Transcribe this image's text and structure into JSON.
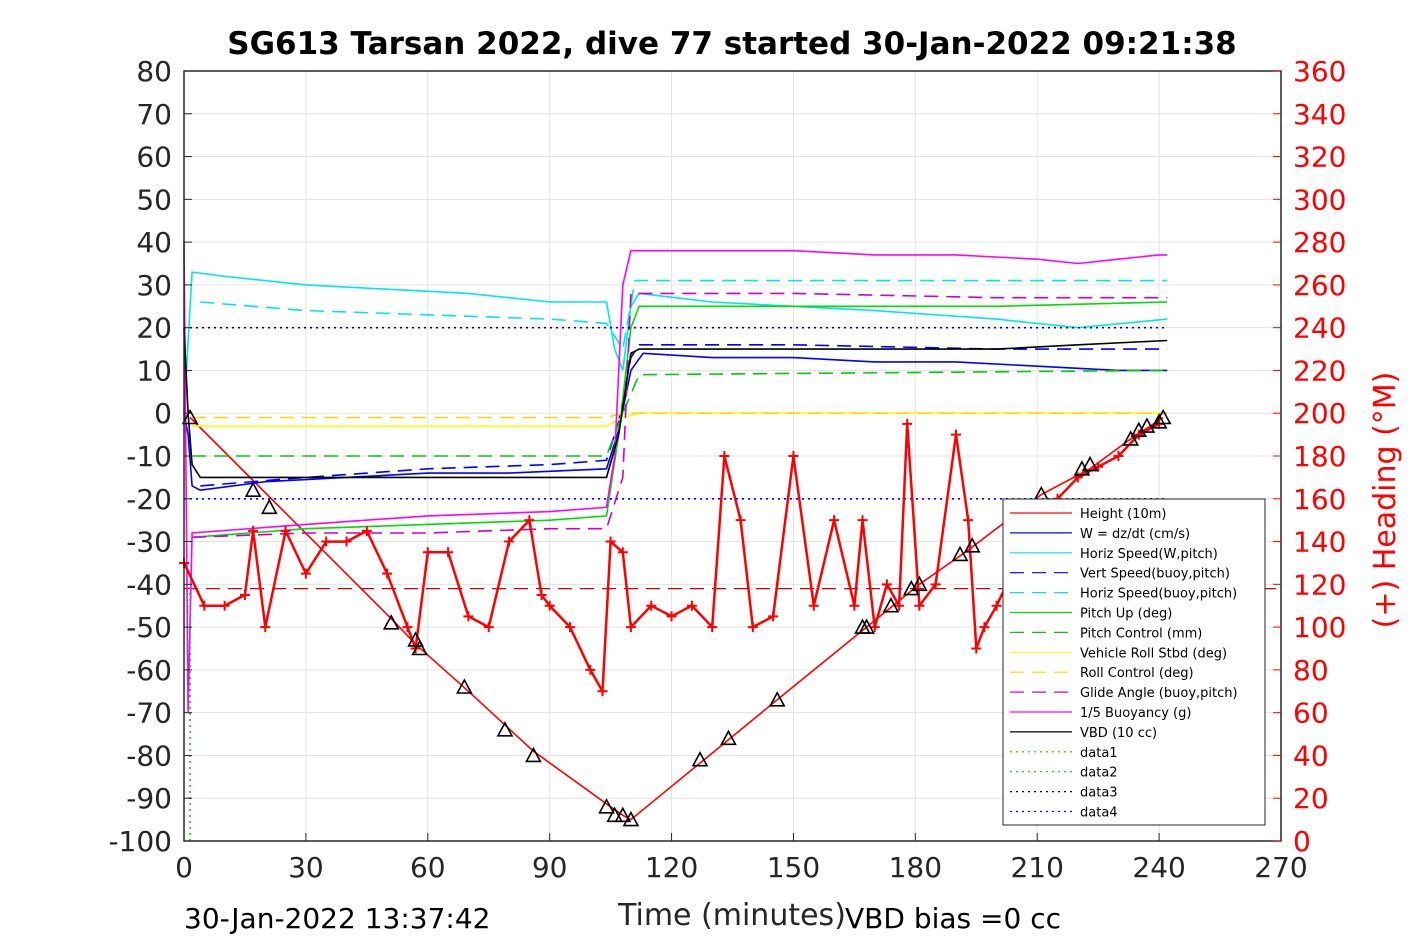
{
  "chart_data": {
    "type": "line",
    "title": "SG613 Tarsan 2022, dive 77 started 30-Jan-2022 09:21:38",
    "xlabel": "Time (minutes)",
    "ylabel_right": "(+) Heading (°M)",
    "footer_left": "30-Jan-2022 13:37:42",
    "footer_right": "VBD bias =0 cc",
    "xlim": [
      0,
      270
    ],
    "ylim_left": [
      -100,
      80
    ],
    "ylim_right": [
      0,
      360
    ],
    "x_ticks": [
      "0",
      "30",
      "60",
      "90",
      "120",
      "150",
      "180",
      "210",
      "240",
      "270"
    ],
    "y_ticks_left": [
      "80",
      "70",
      "60",
      "50",
      "40",
      "30",
      "20",
      "10",
      "0",
      "-10",
      "-20",
      "-30",
      "-40",
      "-50",
      "-60",
      "-70",
      "-80",
      "-90",
      "-100"
    ],
    "y_ticks_right": [
      "360",
      "340",
      "320",
      "300",
      "280",
      "260",
      "240",
      "220",
      "200",
      "180",
      "160",
      "140",
      "120",
      "100",
      "80",
      "60",
      "40",
      "20",
      "0"
    ],
    "grid": true,
    "legend_position": "bottom-right",
    "series": [
      {
        "name": "Height (10m)",
        "color": "#ff0000",
        "dash": "solid",
        "x": [
          1.5,
          52,
          57,
          70,
          86,
          105,
          108,
          110,
          128,
          146,
          168,
          181,
          193,
          211,
          223,
          233,
          241
        ],
        "y": [
          -1,
          -49,
          -54,
          -65,
          -79,
          -92,
          -94,
          -95,
          -81,
          -67,
          -50,
          -40,
          -32,
          -19,
          -13,
          -6,
          -1
        ]
      },
      {
        "name": "W = dz/dt (cm/s)",
        "color": "#0000ff",
        "dash": "solid",
        "x": [
          0,
          1,
          2,
          4,
          20,
          40,
          60,
          80,
          104,
          107,
          110,
          113,
          130,
          150,
          170,
          190,
          210,
          230,
          242
        ],
        "y": [
          0,
          -5,
          -17,
          -18,
          -16,
          -15,
          -14,
          -14,
          -13,
          -4,
          10,
          14,
          13,
          13,
          12,
          12,
          11,
          10,
          10
        ]
      },
      {
        "name": "Horiz Speed(W,pitch)",
        "color": "#00e5ee",
        "dash": "solid",
        "x": [
          0,
          2,
          10,
          30,
          50,
          70,
          90,
          104,
          106,
          108,
          110,
          112,
          130,
          150,
          170,
          185,
          200,
          220,
          242
        ],
        "y": [
          0,
          33,
          32,
          30,
          29,
          28,
          26,
          26,
          15,
          10,
          25,
          28,
          26,
          25,
          24,
          23,
          22,
          20,
          22
        ]
      },
      {
        "name": "Vert Speed(buoy,pitch)",
        "color": "#0000ff",
        "dash": "dashed",
        "x": [
          4,
          30,
          60,
          90,
          104,
          107,
          110,
          112,
          150,
          200,
          242
        ],
        "y": [
          -17,
          -15,
          -13,
          -12,
          -11,
          -2,
          13,
          16,
          16,
          15,
          15
        ]
      },
      {
        "name": "Horiz Speed(buoy,pitch)",
        "color": "#00e5ee",
        "dash": "dashed",
        "x": [
          4,
          30,
          60,
          90,
          104,
          108,
          111,
          150,
          200,
          242
        ],
        "y": [
          26,
          24,
          23,
          22,
          21,
          15,
          31,
          31,
          31,
          31
        ]
      },
      {
        "name": "Pitch Up (deg)",
        "color": "#00dd00",
        "dash": "solid",
        "x": [
          2,
          30,
          60,
          90,
          104,
          107,
          110,
          112,
          150,
          200,
          242
        ],
        "y": [
          -29,
          -27,
          -26,
          -25,
          -24,
          -5,
          20,
          25,
          25,
          25,
          26
        ]
      },
      {
        "name": "Pitch Control (mm)",
        "color": "#00cc00",
        "dash": "dashed",
        "x": [
          2,
          104,
          108,
          112,
          242
        ],
        "y": [
          -10,
          -10,
          0,
          9,
          10
        ]
      },
      {
        "name": "Vehicle Roll Stbd (deg)",
        "color": "#ffff00",
        "dash": "solid",
        "x": [
          2,
          20,
          40,
          60,
          80,
          104,
          108,
          112,
          140,
          170,
          200,
          230,
          242
        ],
        "y": [
          -3,
          -3,
          -3,
          -3,
          -3,
          -3,
          -1,
          0,
          0,
          0,
          0,
          0,
          0
        ]
      },
      {
        "name": "Roll Control (deg)",
        "color": "#ffd400",
        "dash": "dashed",
        "x": [
          2,
          104,
          108,
          242
        ],
        "y": [
          -1,
          -1,
          0,
          0
        ]
      },
      {
        "name": "Glide Angle (buoy,pitch)",
        "color": "#cc00cc",
        "dash": "dashed",
        "x": [
          2,
          30,
          60,
          90,
          104,
          108,
          110,
          150,
          200,
          242
        ],
        "y": [
          -29,
          -28,
          -28,
          -27,
          -27,
          -15,
          28,
          28,
          27,
          27
        ]
      },
      {
        "name": "1/5 Buoyancy (g)",
        "color": "#ff00ff",
        "dash": "solid",
        "x": [
          0,
          1,
          2,
          30,
          60,
          90,
          104,
          106,
          108,
          110,
          130,
          150,
          170,
          190,
          210,
          220,
          230,
          240,
          242
        ],
        "y": [
          40,
          -70,
          -28,
          -26,
          -24,
          -23,
          -22,
          -10,
          30,
          38,
          38,
          38,
          37,
          37,
          36,
          35,
          36,
          37,
          37
        ]
      },
      {
        "name": "VBD (10 cc)",
        "color": "#000000",
        "dash": "solid",
        "x": [
          0,
          1,
          2,
          4,
          104,
          107,
          110,
          112,
          150,
          200,
          220,
          242
        ],
        "y": [
          20,
          0,
          -12,
          -15,
          -15,
          -5,
          14,
          15,
          15,
          15,
          16,
          17
        ]
      },
      {
        "name": "data1",
        "color": "#00cc00",
        "dash": "dotted",
        "x": [
          1.5,
          1.5
        ],
        "y": [
          -100,
          -40
        ]
      },
      {
        "name": "data2",
        "color": "#00cc00",
        "dash": "dotted",
        "x": [],
        "y": []
      },
      {
        "name": "data3",
        "color": "#000080",
        "dash": "dotted",
        "x": [
          0,
          242
        ],
        "y": [
          20,
          20
        ]
      },
      {
        "name": "data4",
        "color": "#0000ff",
        "dash": "dotted",
        "x": [
          0,
          242
        ],
        "y": [
          -20,
          -20
        ]
      }
    ],
    "heading_series": {
      "axis": "right",
      "marker": "+",
      "color": "#ff0000",
      "x": [
        0,
        5,
        10,
        15,
        17,
        20,
        25,
        30,
        35,
        40,
        45,
        50,
        55,
        57,
        60,
        65,
        70,
        75,
        80,
        85,
        88,
        90,
        95,
        100,
        103,
        105,
        108,
        110,
        115,
        120,
        125,
        130,
        133,
        137,
        140,
        145,
        150,
        155,
        160,
        165,
        167,
        170,
        173,
        176,
        178,
        181,
        185,
        190,
        193,
        195,
        197,
        200,
        205,
        210,
        215,
        220,
        225,
        230,
        235,
        240
      ],
      "y": [
        130,
        110,
        110,
        115,
        145,
        100,
        145,
        125,
        140,
        140,
        145,
        125,
        100,
        90,
        135,
        135,
        105,
        100,
        140,
        150,
        115,
        110,
        100,
        80,
        70,
        140,
        135,
        100,
        110,
        105,
        110,
        100,
        180,
        150,
        100,
        105,
        180,
        110,
        150,
        110,
        150,
        100,
        120,
        110,
        195,
        110,
        120,
        190,
        150,
        90,
        100,
        110,
        130,
        150,
        160,
        170,
        175,
        180,
        190,
        195
      ]
    },
    "heading_mean": {
      "color": "#cc0000",
      "dash": "dashed",
      "y_right": 118
    },
    "triangle_markers": {
      "color": "#000000",
      "x": [
        1.5,
        17,
        21,
        51,
        57,
        58,
        69,
        79,
        86,
        104,
        106,
        108,
        110,
        127,
        134,
        146,
        167,
        168,
        174,
        179,
        181,
        191,
        194,
        211,
        221,
        223,
        233,
        235,
        237,
        240,
        241
      ],
      "y": [
        -1,
        -18,
        -22,
        -49,
        -53,
        -55,
        -64,
        -74,
        -80,
        -92,
        -94,
        -94,
        -95,
        -81,
        -76,
        -67,
        -50,
        -50,
        -45,
        -41,
        -40,
        -33,
        -31,
        -19,
        -13,
        -12,
        -6,
        -4,
        -3,
        -2,
        -1
      ]
    }
  }
}
